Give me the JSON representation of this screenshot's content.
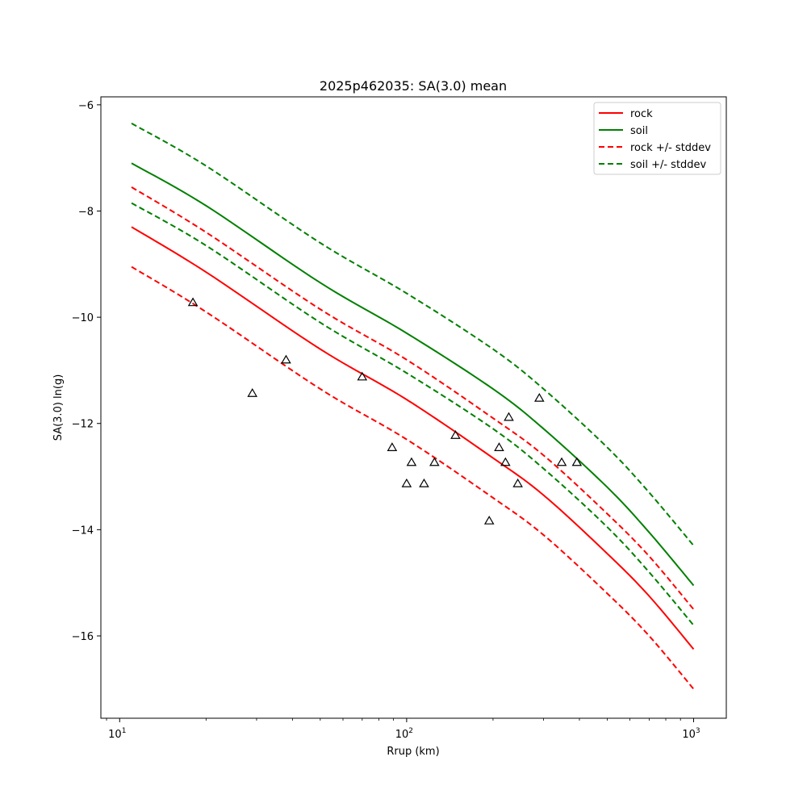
{
  "chart_data": {
    "type": "line",
    "title": "2025p462035: SA(3.0) mean",
    "xlabel": "Rrup (km)",
    "ylabel": "SA(3.0) ln(g)",
    "x_scale": "log",
    "xlim": [
      8.6,
      1300
    ],
    "ylim": [
      -17.55,
      -5.85
    ],
    "x_ticks": [
      {
        "value": 10,
        "base": "10",
        "exp": "1"
      },
      {
        "value": 100,
        "base": "10",
        "exp": "2"
      },
      {
        "value": 1000,
        "base": "10",
        "exp": "3"
      }
    ],
    "y_ticks": [
      {
        "value": -6,
        "label": "−6"
      },
      {
        "value": -8,
        "label": "−8"
      },
      {
        "value": -10,
        "label": "−10"
      },
      {
        "value": -12,
        "label": "−12"
      },
      {
        "value": -14,
        "label": "−14"
      },
      {
        "value": -16,
        "label": "−16"
      }
    ],
    "grid": false,
    "legend_position": "top-right",
    "series": [
      {
        "name": "rock",
        "color": "#ff0000",
        "dash": false,
        "x": [
          11,
          20,
          50,
          100,
          200,
          300,
          500,
          700,
          1000
        ],
        "y": [
          -8.3,
          -9.15,
          -10.6,
          -11.55,
          -12.65,
          -13.35,
          -14.45,
          -15.25,
          -16.25
        ]
      },
      {
        "name": "soil",
        "color": "#008000",
        "dash": false,
        "x": [
          11,
          20,
          50,
          100,
          200,
          300,
          500,
          700,
          1000
        ],
        "y": [
          -7.1,
          -7.9,
          -9.35,
          -10.3,
          -11.35,
          -12.1,
          -13.2,
          -14.05,
          -15.05
        ]
      },
      {
        "name": "rock +/- stddev",
        "color": "#ff0000",
        "dash": true,
        "x": [
          11,
          20,
          50,
          100,
          200,
          300,
          500,
          700,
          1000
        ],
        "y": [
          -7.55,
          -8.4,
          -9.85,
          -10.8,
          -11.9,
          -12.6,
          -13.7,
          -14.5,
          -15.5
        ]
      },
      {
        "name": "rock +/- stddev (lower)",
        "color": "#ff0000",
        "dash": true,
        "x": [
          11,
          20,
          50,
          100,
          200,
          300,
          500,
          700,
          1000
        ],
        "y": [
          -9.05,
          -9.9,
          -11.35,
          -12.3,
          -13.4,
          -14.1,
          -15.2,
          -16.0,
          -17.0
        ]
      },
      {
        "name": "soil +/- stddev",
        "color": "#008000",
        "dash": true,
        "x": [
          11,
          20,
          50,
          100,
          200,
          300,
          500,
          700,
          1000
        ],
        "y": [
          -6.35,
          -7.15,
          -8.6,
          -9.55,
          -10.6,
          -11.35,
          -12.45,
          -13.3,
          -14.3
        ]
      },
      {
        "name": "soil +/- stddev (lower)",
        "color": "#008000",
        "dash": true,
        "x": [
          11,
          20,
          50,
          100,
          200,
          300,
          500,
          700,
          1000
        ],
        "y": [
          -7.85,
          -8.65,
          -10.1,
          -11.05,
          -12.1,
          -12.85,
          -13.95,
          -14.8,
          -15.8
        ]
      }
    ],
    "legend_entries": [
      {
        "name": "rock",
        "color": "#ff0000",
        "dash": false
      },
      {
        "name": "soil",
        "color": "#008000",
        "dash": false
      },
      {
        "name": "rock +/- stddev",
        "color": "#ff0000",
        "dash": true
      },
      {
        "name": "soil +/- stddev",
        "color": "#008000",
        "dash": true
      }
    ],
    "observations": {
      "marker": "triangle",
      "color": "#000000",
      "points": [
        {
          "x": 18,
          "y": -9.72
        },
        {
          "x": 29,
          "y": -11.43
        },
        {
          "x": 38,
          "y": -10.8
        },
        {
          "x": 70,
          "y": -11.12
        },
        {
          "x": 89,
          "y": -12.45
        },
        {
          "x": 100,
          "y": -13.13
        },
        {
          "x": 104,
          "y": -12.73
        },
        {
          "x": 115,
          "y": -13.13
        },
        {
          "x": 125,
          "y": -12.73
        },
        {
          "x": 148,
          "y": -12.22
        },
        {
          "x": 194,
          "y": -13.83
        },
        {
          "x": 210,
          "y": -12.45
        },
        {
          "x": 221,
          "y": -12.73
        },
        {
          "x": 227,
          "y": -11.88
        },
        {
          "x": 244,
          "y": -13.13
        },
        {
          "x": 290,
          "y": -11.52
        },
        {
          "x": 347,
          "y": -12.73
        },
        {
          "x": 392,
          "y": -12.73
        }
      ]
    }
  }
}
